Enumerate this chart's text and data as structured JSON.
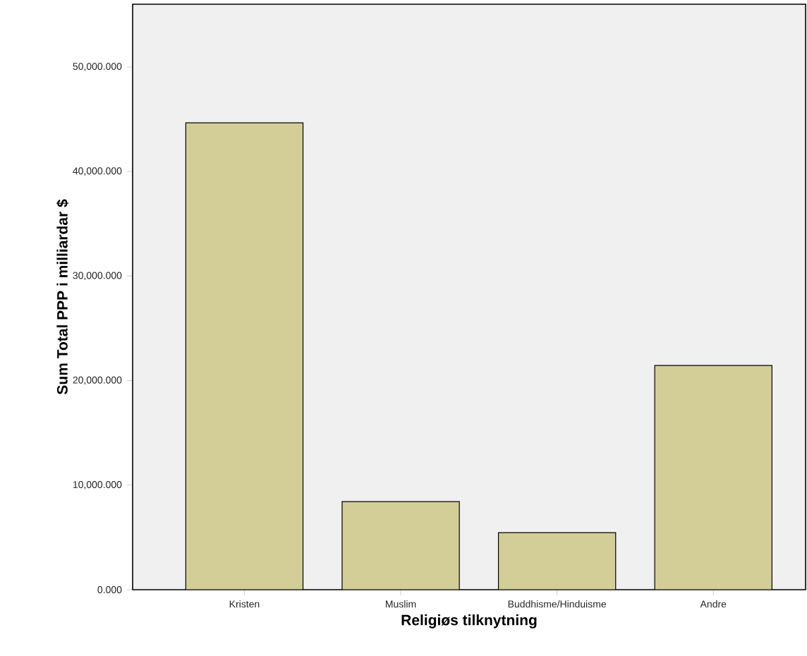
{
  "chart_data": {
    "type": "bar",
    "xlabel": "Religiøs tilknytning",
    "ylabel": "Sum Total PPP i milliardar $",
    "categories": [
      "Kristen",
      "Muslim",
      "Buddhisme/Hinduisme",
      "Andre"
    ],
    "values": [
      44650,
      8430,
      5460,
      21450
    ],
    "color": "#d3ce98",
    "ylim": [
      0,
      56000
    ],
    "yticks": [
      {
        "value": 0,
        "label": "0.000"
      },
      {
        "value": 10000,
        "label": "10,000.000"
      },
      {
        "value": 20000,
        "label": "20,000.000"
      },
      {
        "value": 30000,
        "label": "30,000.000"
      },
      {
        "value": 40000,
        "label": "40,000.000"
      },
      {
        "value": 50000,
        "label": "50,000.000"
      }
    ],
    "grid": false
  }
}
